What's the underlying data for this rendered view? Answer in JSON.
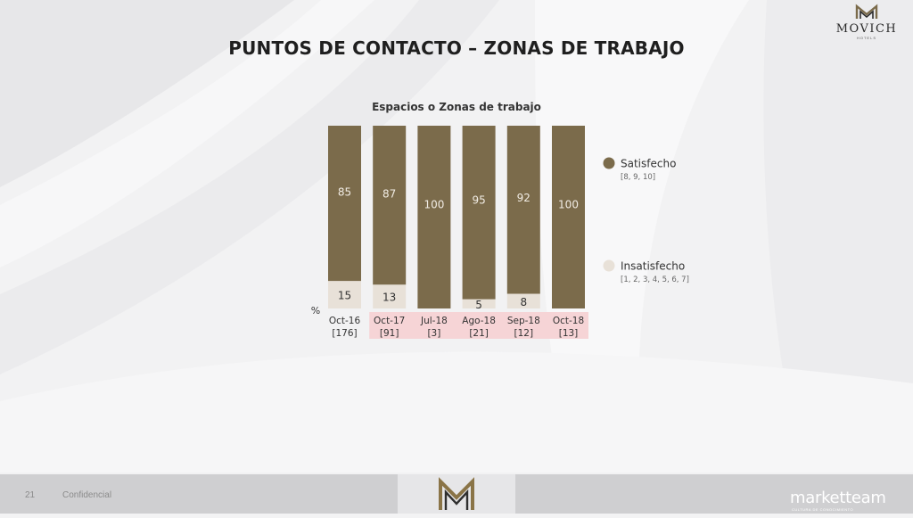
{
  "slide": {
    "title": "PUNTOS DE CONTACTO – ZONAS DE TRABAJO",
    "page_number": "21",
    "confidential_label": "Confidencial"
  },
  "logo": {
    "name": "MOVICH",
    "sub": "HOTELS"
  },
  "footer_brand": {
    "name": "marketteam",
    "tagline": "CULTURA DE CONOCIMIENTO"
  },
  "colors": {
    "satisfecho": "#7b6b4b",
    "insatisfecho": "#e8e1d8",
    "highlight": "#f6d4d6"
  },
  "chart_data": {
    "type": "bar",
    "stacked": true,
    "title": "Espacios o Zonas de trabajo",
    "ylabel": "%",
    "ylim": [
      0,
      100
    ],
    "categories": [
      "Oct-16",
      "Oct-17",
      "Jul-18",
      "Ago-18",
      "Sep-18",
      "Oct-18"
    ],
    "base_sizes": [
      "[176]",
      "[91]",
      "[3]",
      "[21]",
      "[12]",
      "[13]"
    ],
    "highlighted_categories": [
      "Oct-17",
      "Jul-18",
      "Ago-18",
      "Sep-18",
      "Oct-18"
    ],
    "series": [
      {
        "name": "Satisfecho",
        "range": "[8, 9, 10]",
        "values": [
          85,
          87,
          100,
          95,
          92,
          100
        ],
        "labels": [
          "85",
          "87",
          "100",
          "95",
          "92",
          "100"
        ]
      },
      {
        "name": "Insatisfecho",
        "range": "[1, 2, 3, 4, 5, 6, 7]",
        "values": [
          15,
          13,
          0,
          5,
          8,
          0
        ],
        "labels": [
          "15",
          "13",
          "",
          "5",
          "8",
          ""
        ]
      }
    ],
    "legend_position": "right"
  }
}
